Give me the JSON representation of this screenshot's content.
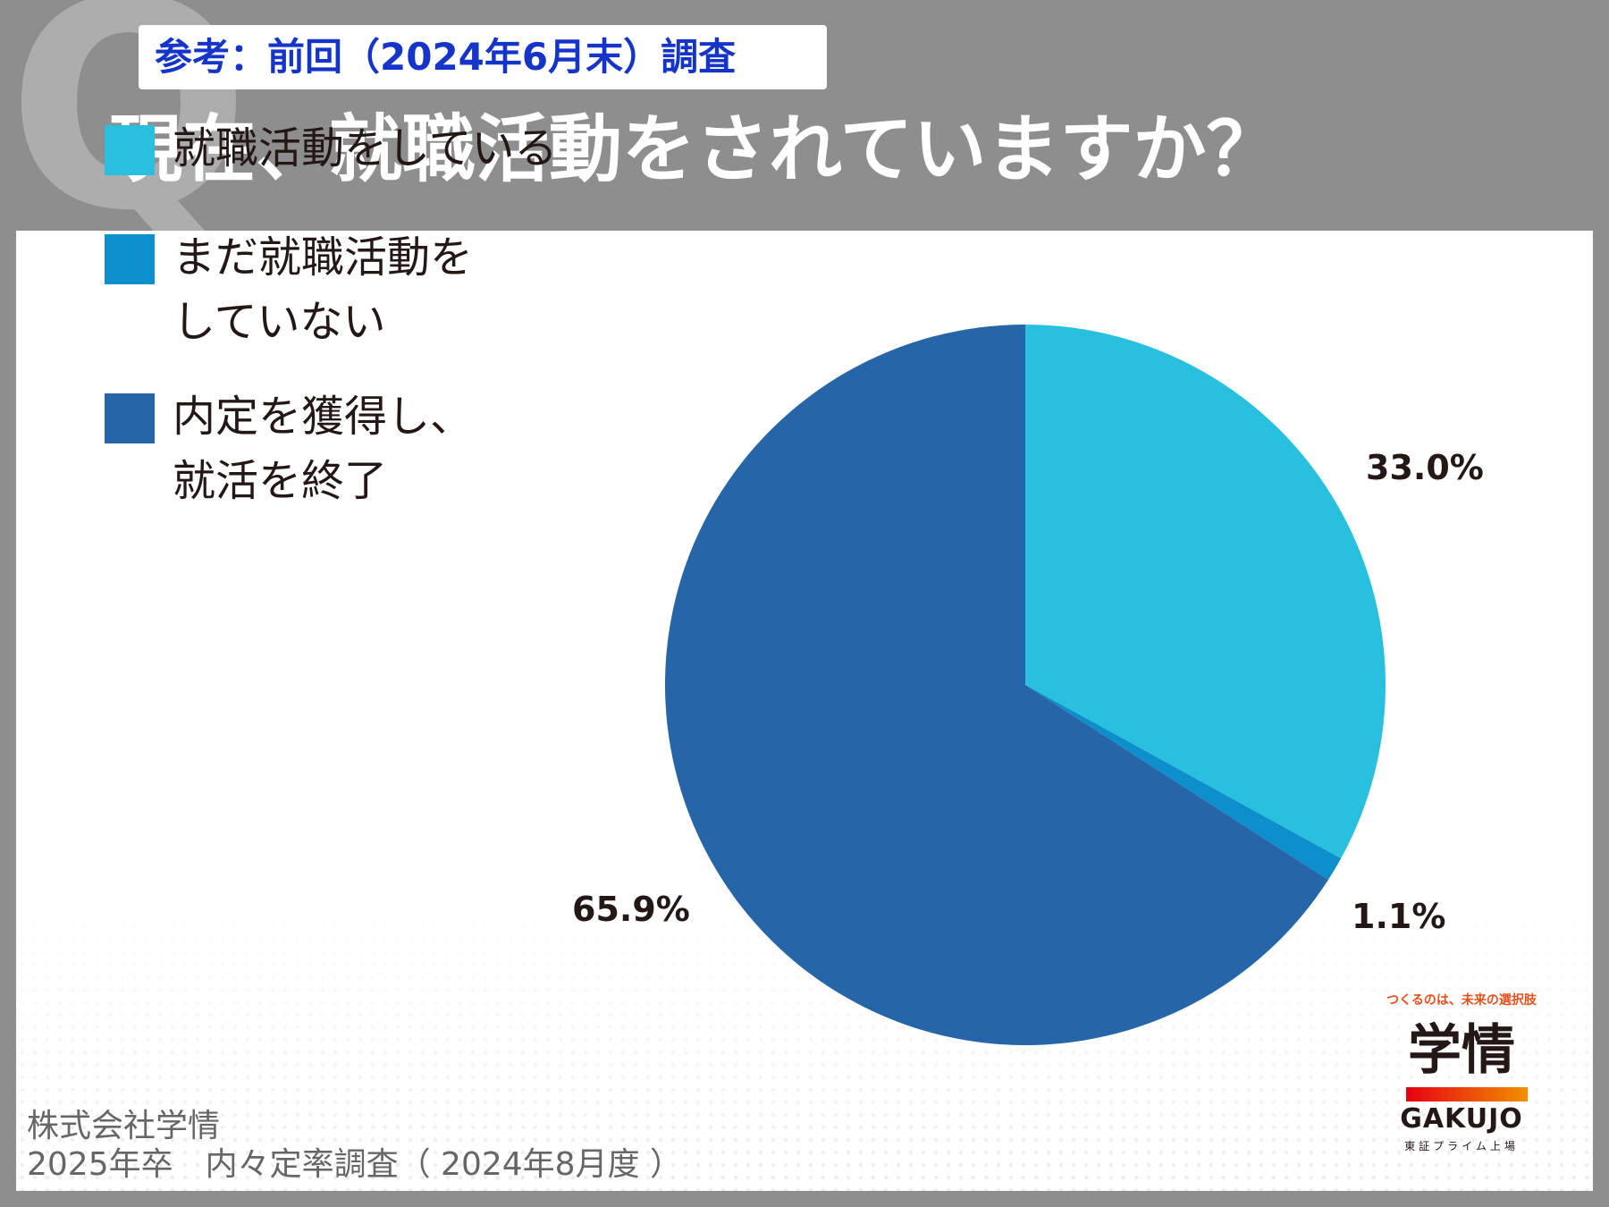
{
  "header": {
    "reference_tag": "参考：前回（2024年6月末）調査",
    "title": "現在、就職活動をされていますか？",
    "decoration_letter": "Q"
  },
  "chart_data": {
    "type": "pie",
    "categories": [
      "就職活動をしている",
      "まだ就職活動を\nしていない",
      "内定を獲得し、\n就活を終了"
    ],
    "values": [
      33.0,
      1.1,
      65.9
    ],
    "value_labels": [
      "33.0%",
      "1.1%",
      "65.9%"
    ],
    "colors": [
      "#29c0e0",
      "#0d8fcc",
      "#2666a8"
    ],
    "start_angle": "12 o'clock",
    "direction": "clockwise",
    "legend_position": "left"
  },
  "footer": {
    "source_line1": "株式会社学情",
    "source_line2": "2025年卒　内々定率調査（ 2024年8月度 ）"
  },
  "logo": {
    "tagline": "つくるのは、未来の選択肢",
    "kanji": "学情",
    "english": "GAKUJO",
    "subtitle": "東証プライム上場"
  }
}
